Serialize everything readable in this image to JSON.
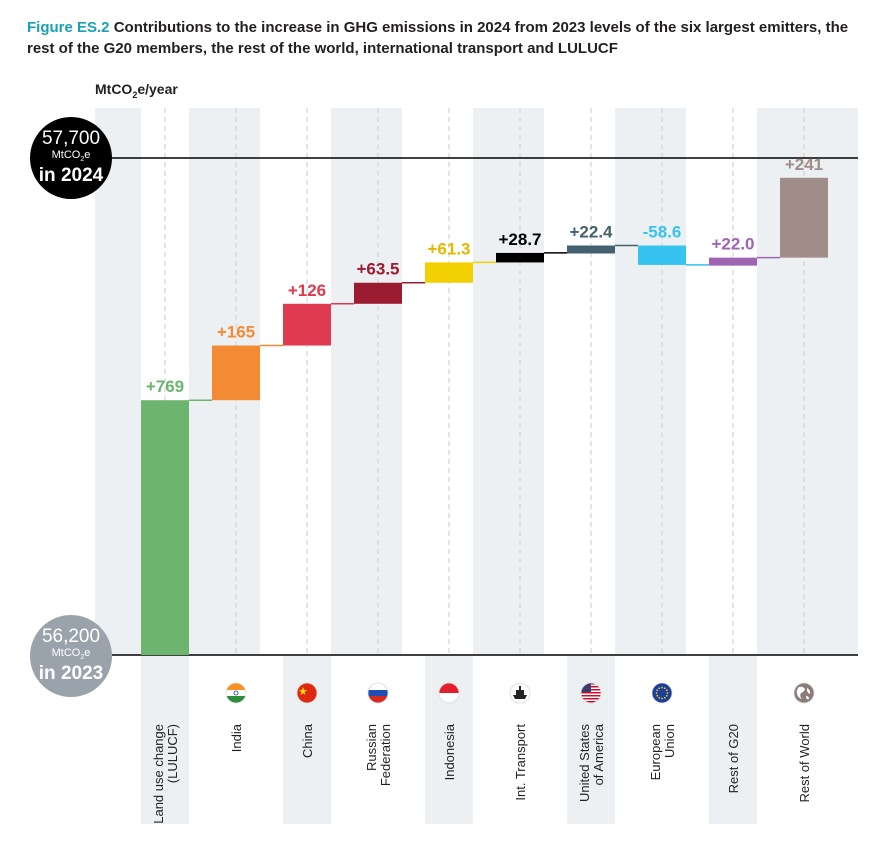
{
  "figure": {
    "label": "Figure ES.2",
    "title": "Contributions to the increase in GHG emissions in 2024 from 2023 levels of the six largest emitters, the rest of the G20 members, the rest of the world, international transport and LULUCF"
  },
  "unit": {
    "prefix": "MtCO",
    "sub": "2",
    "suffix": "e/year"
  },
  "badges": {
    "top": {
      "value": "57,700",
      "unit_prefix": "MtCO",
      "unit_sub": "2",
      "unit_suffix": "e",
      "year": "in 2024"
    },
    "bottom": {
      "value": "56,200",
      "unit_prefix": "MtCO",
      "unit_sub": "2",
      "unit_suffix": "e",
      "year": "in 2023"
    }
  },
  "chart_data": {
    "type": "waterfall",
    "start_value": 56200,
    "end_value": 57700,
    "start_label": "in 2023",
    "end_label": "in 2024",
    "unit": "MtCO2e/year",
    "categories": [
      {
        "name": "Land use change (LULUCF)",
        "lines": [
          "Land use change",
          "(LULUCF)"
        ],
        "value": 769,
        "label": "+769",
        "color": "#6db46e",
        "label_color": "#6db46e",
        "icon": "none"
      },
      {
        "name": "India",
        "lines": [
          "India"
        ],
        "value": 165,
        "label": "+165",
        "color": "#f58a34",
        "label_color": "#f58a34",
        "icon": "india-flag"
      },
      {
        "name": "China",
        "lines": [
          "China"
        ],
        "value": 126,
        "label": "+126",
        "color": "#de3a50",
        "label_color": "#de3a50",
        "icon": "china-flag"
      },
      {
        "name": "Russian Federation",
        "lines": [
          "Russian",
          "Federation"
        ],
        "value": 63.5,
        "label": "+63.5",
        "color": "#9b1b30",
        "label_color": "#9b1b30",
        "icon": "russia-flag"
      },
      {
        "name": "Indonesia",
        "lines": [
          "Indonesia"
        ],
        "value": 61.3,
        "label": "+61.3",
        "color": "#f2cf00",
        "label_color": "#e6b800",
        "icon": "indonesia-flag"
      },
      {
        "name": "Int. Transport",
        "lines": [
          "Int. Transport"
        ],
        "value": 28.7,
        "label": "+28.7",
        "color": "#000000",
        "label_color": "#000000",
        "icon": "ship"
      },
      {
        "name": "United States of America",
        "lines": [
          "United States",
          "of America"
        ],
        "value": 22.4,
        "label": "+22.4",
        "color": "#45606f",
        "label_color": "#45606f",
        "icon": "usa-flag"
      },
      {
        "name": "European Union",
        "lines": [
          "European",
          "Union"
        ],
        "value": -58.6,
        "label": "-58.6",
        "color": "#36c3f0",
        "label_color": "#36c3f0",
        "icon": "eu-flag"
      },
      {
        "name": "Rest of G20",
        "lines": [
          "Rest of G20"
        ],
        "value": 22.0,
        "label": "+22.0",
        "color": "#a064b4",
        "label_color": "#a064b4",
        "icon": "none"
      },
      {
        "name": "Rest of World",
        "lines": [
          "Rest of World"
        ],
        "value": 241,
        "label": "+241",
        "color": "#a08c89",
        "label_color": "#a08c89",
        "icon": "globe"
      }
    ]
  }
}
